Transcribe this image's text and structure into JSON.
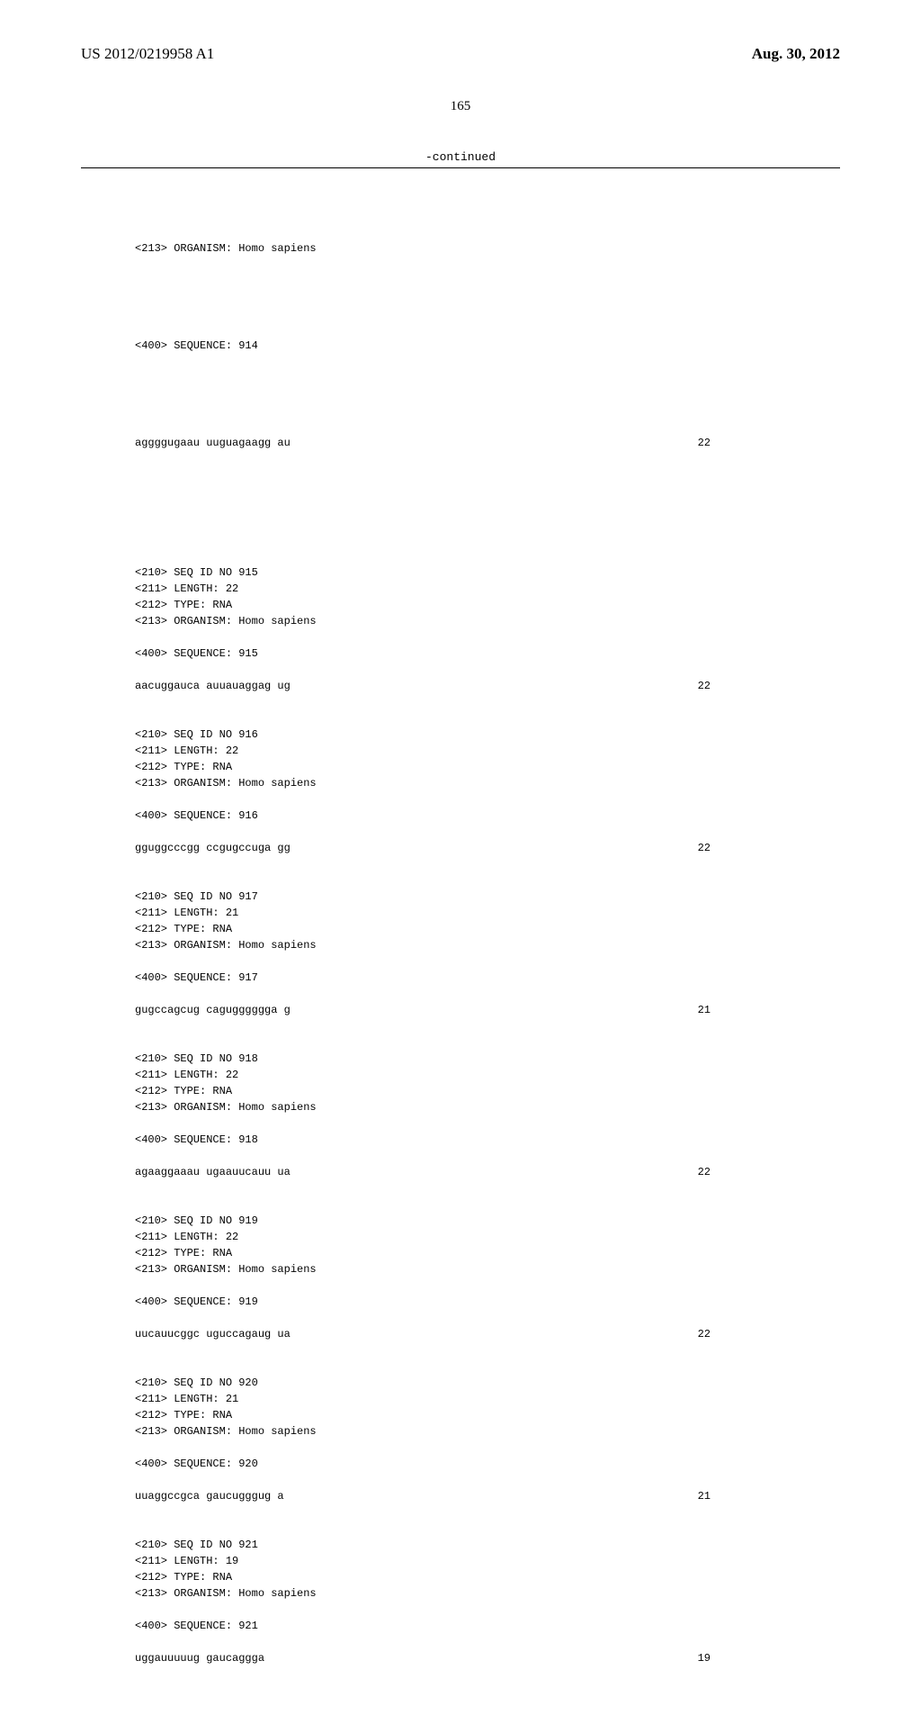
{
  "header": {
    "pub_number": "US 2012/0219958 A1",
    "pub_date": "Aug. 30, 2012"
  },
  "page_number": "165",
  "continued_label": "-continued",
  "prelude": {
    "organism_line": "<213> ORGANISM: Homo sapiens",
    "seq_label": "<400> SEQUENCE: 914",
    "sequence": "aggggugaau uuguagaagg au",
    "length": "22"
  },
  "entries": [
    {
      "id_line": "<210> SEQ ID NO 915",
      "length_line": "<211> LENGTH: 22",
      "type_line": "<212> TYPE: RNA",
      "organism_line": "<213> ORGANISM: Homo sapiens",
      "seq_label": "<400> SEQUENCE: 915",
      "sequence": "aacuggauca auuauaggag ug",
      "length": "22"
    },
    {
      "id_line": "<210> SEQ ID NO 916",
      "length_line": "<211> LENGTH: 22",
      "type_line": "<212> TYPE: RNA",
      "organism_line": "<213> ORGANISM: Homo sapiens",
      "seq_label": "<400> SEQUENCE: 916",
      "sequence": "gguggcccgg ccgugccuga gg",
      "length": "22"
    },
    {
      "id_line": "<210> SEQ ID NO 917",
      "length_line": "<211> LENGTH: 21",
      "type_line": "<212> TYPE: RNA",
      "organism_line": "<213> ORGANISM: Homo sapiens",
      "seq_label": "<400> SEQUENCE: 917",
      "sequence": "gugccagcug cagugggggga g",
      "length": "21"
    },
    {
      "id_line": "<210> SEQ ID NO 918",
      "length_line": "<211> LENGTH: 22",
      "type_line": "<212> TYPE: RNA",
      "organism_line": "<213> ORGANISM: Homo sapiens",
      "seq_label": "<400> SEQUENCE: 918",
      "sequence": "agaaggaaau ugaauucauu ua",
      "length": "22"
    },
    {
      "id_line": "<210> SEQ ID NO 919",
      "length_line": "<211> LENGTH: 22",
      "type_line": "<212> TYPE: RNA",
      "organism_line": "<213> ORGANISM: Homo sapiens",
      "seq_label": "<400> SEQUENCE: 919",
      "sequence": "uucauucggc uguccagaug ua",
      "length": "22"
    },
    {
      "id_line": "<210> SEQ ID NO 920",
      "length_line": "<211> LENGTH: 21",
      "type_line": "<212> TYPE: RNA",
      "organism_line": "<213> ORGANISM: Homo sapiens",
      "seq_label": "<400> SEQUENCE: 920",
      "sequence": "uuaggccgca gaucugggug a",
      "length": "21"
    },
    {
      "id_line": "<210> SEQ ID NO 921",
      "length_line": "<211> LENGTH: 19",
      "type_line": "<212> TYPE: RNA",
      "organism_line": "<213> ORGANISM: Homo sapiens",
      "seq_label": "<400> SEQUENCE: 921",
      "sequence": "uggauuuuug gaucaggga",
      "length": "19"
    }
  ]
}
